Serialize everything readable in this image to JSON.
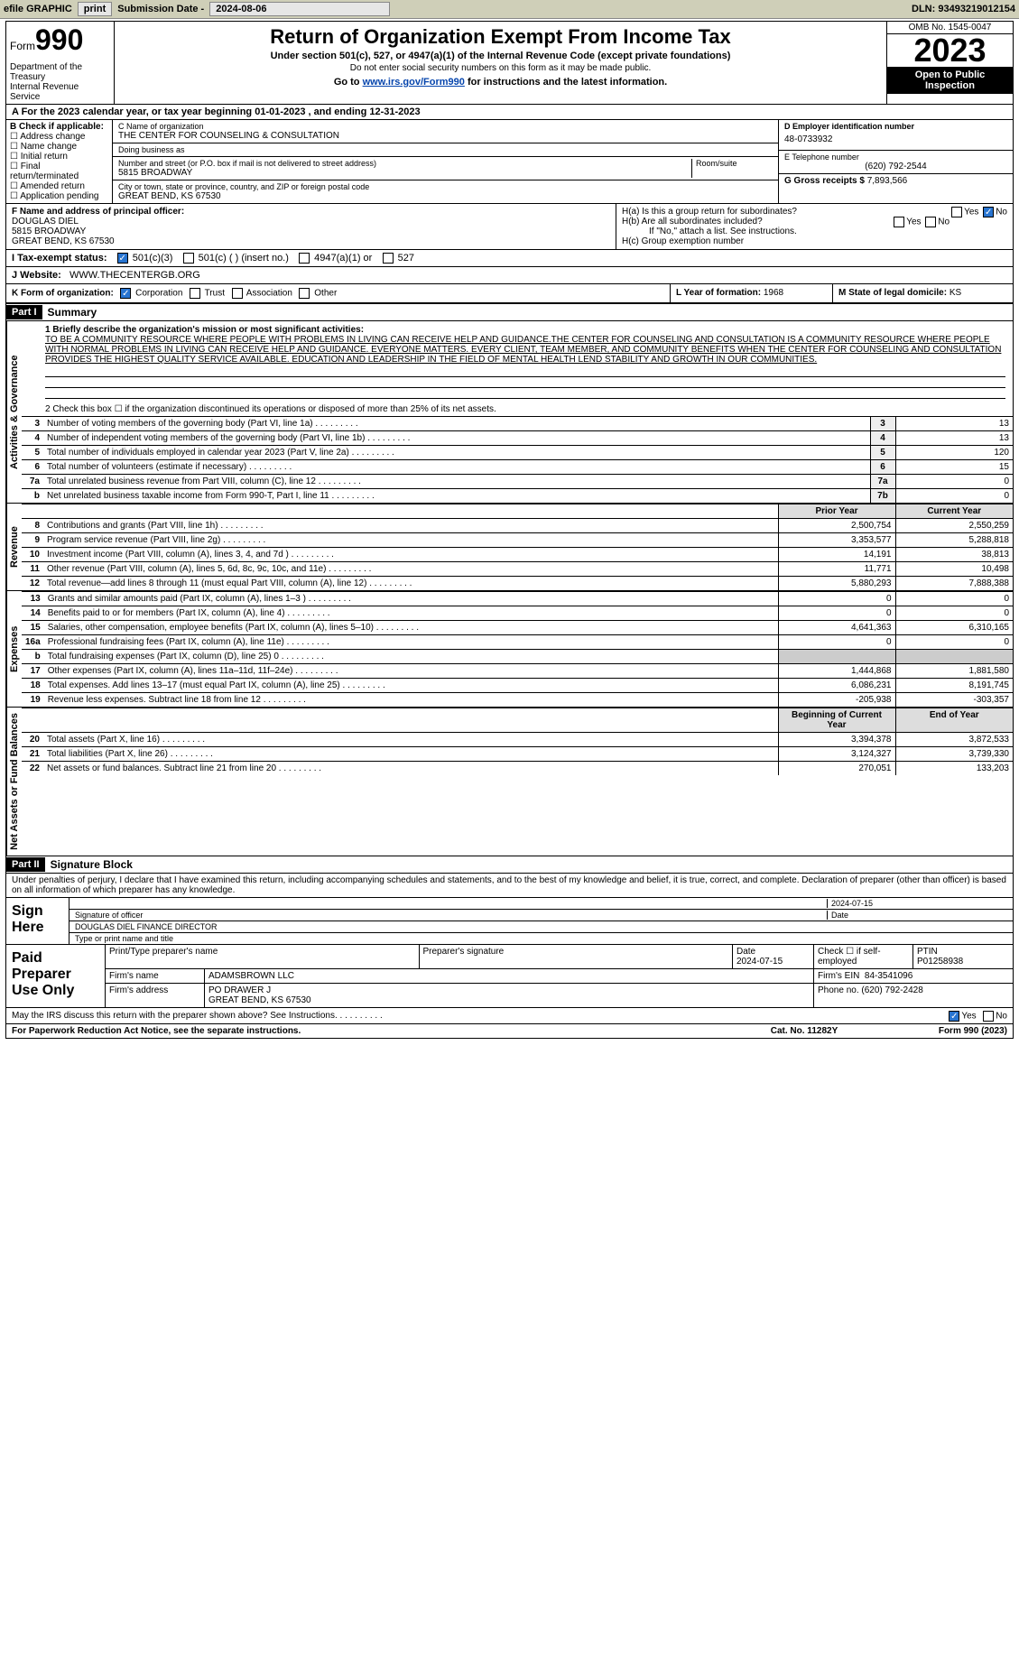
{
  "toolbar": {
    "efile": "efile GRAPHIC",
    "print": "print",
    "sub_label": "Submission Date -",
    "sub_date": "2024-08-06",
    "dln_label": "DLN:",
    "dln": "93493219012154"
  },
  "header": {
    "form_word": "Form",
    "form_num": "990",
    "dept": "Department of the Treasury\nInternal Revenue Service",
    "title": "Return of Organization Exempt From Income Tax",
    "sub1": "Under section 501(c), 527, or 4947(a)(1) of the Internal Revenue Code (except private foundations)",
    "sub2": "Do not enter social security numbers on this form as it may be made public.",
    "goto_pre": "Go to ",
    "goto_link": "www.irs.gov/Form990",
    "goto_post": " for instructions and the latest information.",
    "omb": "OMB No. 1545-0047",
    "year": "2023",
    "open": "Open to Public Inspection"
  },
  "period": {
    "label_a": "A For the 2023 calendar year, or tax year beginning ",
    "begin": "01-01-2023",
    "label_mid": " , and ending ",
    "end": "12-31-2023"
  },
  "colB": {
    "head": "B Check if applicable:",
    "items": [
      "Address change",
      "Name change",
      "Initial return",
      "Final return/terminated",
      "Amended return",
      "Application pending"
    ]
  },
  "colC": {
    "name_lbl": "C Name of organization",
    "name": "THE CENTER FOR COUNSELING & CONSULTATION",
    "dba_lbl": "Doing business as",
    "dba": "",
    "street_lbl": "Number and street (or P.O. box if mail is not delivered to street address)",
    "street": "5815 BROADWAY",
    "room_lbl": "Room/suite",
    "city_lbl": "City or town, state or province, country, and ZIP or foreign postal code",
    "city": "GREAT BEND, KS  67530"
  },
  "colD": {
    "ein_lbl": "D Employer identification number",
    "ein": "48-0733932",
    "tel_lbl": "E Telephone number",
    "tel": "(620) 792-2544",
    "gross_lbl": "G Gross receipts $",
    "gross": "7,893,566"
  },
  "secF": {
    "label": "F Name and address of principal officer:",
    "l1": "DOUGLAS DIEL",
    "l2": "5815 BROADWAY",
    "l3": "GREAT BEND, KS  67530"
  },
  "secH": {
    "ha": "H(a)  Is this a group return for subordinates?",
    "hb": "H(b)  Are all subordinates included?",
    "note": "If \"No,\" attach a list. See instructions.",
    "hc": "H(c)  Group exemption number",
    "yes": "Yes",
    "no": "No"
  },
  "secI": {
    "label": "I  Tax-exempt status:",
    "c3": "501(c)(3)",
    "c": "501(c) (  ) (insert no.)",
    "a1": "4947(a)(1) or",
    "s527": "527"
  },
  "secJ": {
    "label": "J  Website:",
    "url": "WWW.THECENTERGB.ORG"
  },
  "secK": {
    "label": "K Form of organization:",
    "corp": "Corporation",
    "trust": "Trust",
    "assoc": "Association",
    "other": "Other"
  },
  "secL": {
    "label": "L Year of formation:",
    "val": "1968"
  },
  "secM": {
    "label": "M State of legal domicile:",
    "val": "KS"
  },
  "part1": {
    "part": "Part I",
    "title": "Summary",
    "side_act": "Activities & Governance",
    "side_rev": "Revenue",
    "side_exp": "Expenses",
    "side_net": "Net Assets or Fund Balances",
    "line1_lbl": "1  Briefly describe the organization's mission or most significant activities:",
    "line1_txt": "TO BE A COMMUNITY RESOURCE WHERE PEOPLE WITH PROBLEMS IN LIVING CAN RECEIVE HELP AND GUIDANCE.THE CENTER FOR COUNSELING AND CONSULTATION IS A COMMUNITY RESOURCE WHERE PEOPLE WITH NORMAL PROBLEMS IN LIVING CAN RECEIVE HELP AND GUIDANCE. EVERYONE MATTERS. EVERY CLIENT, TEAM MEMBER, AND COMMUNITY BENEFITS WHEN THE CENTER FOR COUNSELING AND CONSULTATION PROVIDES THE HIGHEST QUALITY SERVICE AVAILABLE. EDUCATION AND LEADERSHIP IN THE FIELD OF MENTAL HEALTH LEND STABILITY AND GROWTH IN OUR COMMUNITIES.",
    "line2": "2  Check this box ☐ if the organization discontinued its operations or disposed of more than 25% of its net assets.",
    "rows_act": [
      {
        "n": "3",
        "d": "Number of voting members of the governing body (Part VI, line 1a)",
        "k": "3",
        "v": "13"
      },
      {
        "n": "4",
        "d": "Number of independent voting members of the governing body (Part VI, line 1b)",
        "k": "4",
        "v": "13"
      },
      {
        "n": "5",
        "d": "Total number of individuals employed in calendar year 2023 (Part V, line 2a)",
        "k": "5",
        "v": "120"
      },
      {
        "n": "6",
        "d": "Total number of volunteers (estimate if necessary)",
        "k": "6",
        "v": "15"
      },
      {
        "n": "7a",
        "d": "Total unrelated business revenue from Part VIII, column (C), line 12",
        "k": "7a",
        "v": "0"
      },
      {
        "n": "b",
        "d": "Net unrelated business taxable income from Form 990-T, Part I, line 11",
        "k": "7b",
        "v": "0"
      }
    ],
    "col_prior": "Prior Year",
    "col_curr": "Current Year",
    "rows_rev": [
      {
        "n": "8",
        "d": "Contributions and grants (Part VIII, line 1h)",
        "p": "2,500,754",
        "c": "2,550,259"
      },
      {
        "n": "9",
        "d": "Program service revenue (Part VIII, line 2g)",
        "p": "3,353,577",
        "c": "5,288,818"
      },
      {
        "n": "10",
        "d": "Investment income (Part VIII, column (A), lines 3, 4, and 7d )",
        "p": "14,191",
        "c": "38,813"
      },
      {
        "n": "11",
        "d": "Other revenue (Part VIII, column (A), lines 5, 6d, 8c, 9c, 10c, and 11e)",
        "p": "11,771",
        "c": "10,498"
      },
      {
        "n": "12",
        "d": "Total revenue—add lines 8 through 11 (must equal Part VIII, column (A), line 12)",
        "p": "5,880,293",
        "c": "7,888,388"
      }
    ],
    "rows_exp": [
      {
        "n": "13",
        "d": "Grants and similar amounts paid (Part IX, column (A), lines 1–3 )",
        "p": "0",
        "c": "0"
      },
      {
        "n": "14",
        "d": "Benefits paid to or for members (Part IX, column (A), line 4)",
        "p": "0",
        "c": "0"
      },
      {
        "n": "15",
        "d": "Salaries, other compensation, employee benefits (Part IX, column (A), lines 5–10)",
        "p": "4,641,363",
        "c": "6,310,165"
      },
      {
        "n": "16a",
        "d": "Professional fundraising fees (Part IX, column (A), line 11e)",
        "p": "0",
        "c": "0"
      },
      {
        "n": "b",
        "d": "Total fundraising expenses (Part IX, column (D), line 25) 0",
        "p": "",
        "c": "",
        "shade": true
      },
      {
        "n": "17",
        "d": "Other expenses (Part IX, column (A), lines 11a–11d, 11f–24e)",
        "p": "1,444,868",
        "c": "1,881,580"
      },
      {
        "n": "18",
        "d": "Total expenses. Add lines 13–17 (must equal Part IX, column (A), line 25)",
        "p": "6,086,231",
        "c": "8,191,745"
      },
      {
        "n": "19",
        "d": "Revenue less expenses. Subtract line 18 from line 12",
        "p": "-205,938",
        "c": "-303,357"
      }
    ],
    "col_beg": "Beginning of Current Year",
    "col_end": "End of Year",
    "rows_net": [
      {
        "n": "20",
        "d": "Total assets (Part X, line 16)",
        "p": "3,394,378",
        "c": "3,872,533"
      },
      {
        "n": "21",
        "d": "Total liabilities (Part X, line 26)",
        "p": "3,124,327",
        "c": "3,739,330"
      },
      {
        "n": "22",
        "d": "Net assets or fund balances. Subtract line 21 from line 20",
        "p": "270,051",
        "c": "133,203"
      }
    ]
  },
  "part2": {
    "part": "Part II",
    "title": "Signature Block",
    "decl": "Under penalties of perjury, I declare that I have examined this return, including accompanying schedules and statements, and to the best of my knowledge and belief, it is true, correct, and complete. Declaration of preparer (other than officer) is based on all information of which preparer has any knowledge.",
    "sign_here": "Sign Here",
    "sig_of_officer": "Signature of officer",
    "sig_date": "2024-07-15",
    "officer": "DOUGLAS DIEL FINANCE DIRECTOR",
    "type_lbl": "Type or print name and title",
    "date_lbl": "Date",
    "paid": "Paid Preparer Use Only",
    "prep_name_lbl": "Print/Type preparer's name",
    "prep_sig_lbl": "Preparer's signature",
    "prep_date": "2024-07-15",
    "self_emp": "Check ☐ if self-employed",
    "ptin_lbl": "PTIN",
    "ptin": "P01258938",
    "firm_name_lbl": "Firm's name",
    "firm_name": "ADAMSBROWN LLC",
    "firm_ein_lbl": "Firm's EIN",
    "firm_ein": "84-3541096",
    "firm_addr_lbl": "Firm's address",
    "firm_addr1": "PO DRAWER J",
    "firm_addr2": "GREAT BEND, KS  67530",
    "phone_lbl": "Phone no.",
    "phone": "(620) 792-2428",
    "discuss": "May the IRS discuss this return with the preparer shown above? See Instructions.",
    "yes": "Yes",
    "no": "No"
  },
  "footer": {
    "pra": "For Paperwork Reduction Act Notice, see the separate instructions.",
    "cat": "Cat. No. 11282Y",
    "form": "Form 990 (2023)"
  }
}
